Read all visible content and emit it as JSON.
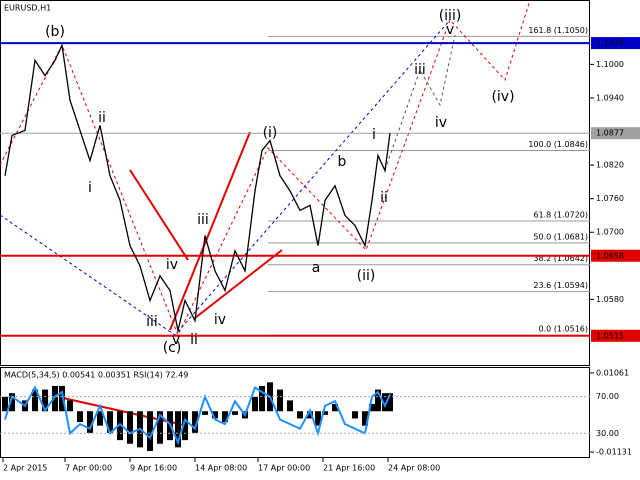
{
  "chart_data": [
    {
      "type": "line",
      "title": "EURUSD,H1",
      "color": "#000000",
      "x": [
        5,
        12,
        25,
        35,
        45,
        55,
        62,
        70,
        80,
        90,
        100,
        110,
        120,
        130,
        140,
        150,
        160,
        170,
        178,
        185,
        195,
        205,
        215,
        225,
        235,
        245,
        255,
        262,
        270,
        280,
        290,
        300,
        310,
        318,
        325,
        335,
        345,
        355,
        365,
        372,
        378,
        385,
        390
      ],
      "values": [
        1.0801,
        1.0873,
        1.0882,
        1.1007,
        1.098,
        1.1007,
        1.1034,
        1.0936,
        1.0882,
        1.0828,
        1.0891,
        1.0801,
        1.0757,
        1.0676,
        1.064,
        1.0578,
        1.0622,
        1.0596,
        1.0524,
        1.0578,
        1.0542,
        1.0694,
        1.0631,
        1.0596,
        1.0667,
        1.0631,
        1.0774,
        1.0846,
        1.0864,
        1.0801,
        1.0774,
        1.0739,
        1.0748,
        1.0676,
        1.0757,
        1.0783,
        1.073,
        1.0712,
        1.0676,
        1.0757,
        1.0837,
        1.081,
        1.0877
      ],
      "xlim": [
        0,
        590
      ],
      "xticks": [
        {
          "value": 3,
          "label": "2 Apr 2015"
        },
        {
          "value": 65,
          "label": "7 Apr 00:00"
        },
        {
          "value": 130,
          "label": "9 Apr 16:00"
        },
        {
          "value": 195,
          "label": "14 Apr 08:00"
        },
        {
          "value": 258,
          "label": "17 Apr 00:00"
        },
        {
          "value": 323,
          "label": "21 Apr 16:00"
        },
        {
          "value": 388,
          "label": "24 Apr 08:00"
        }
      ],
      "ylim": [
        1.0461,
        1.1115
      ],
      "yticks": [
        {
          "value": 1.1,
          "label": "1.1000"
        },
        {
          "value": 1.094,
          "label": "1.0940"
        },
        {
          "value": 1.082,
          "label": "1.0820"
        },
        {
          "value": 1.076,
          "label": "1.0760"
        },
        {
          "value": 1.07,
          "label": "1.0700"
        },
        {
          "value": 1.058,
          "label": "1.0580"
        }
      ],
      "levels": [
        {
          "value": 1.1038,
          "color": "#0000cd"
        },
        {
          "value": 1.0877,
          "color": "#a0a0a0"
        },
        {
          "value": 1.0658,
          "color": "#e00000"
        },
        {
          "value": 1.0515,
          "color": "#e00000"
        }
      ],
      "fib": [
        {
          "value": 1.105,
          "label": "161.8 (1.1050)"
        },
        {
          "value": 1.0846,
          "label": "100.0 (1.0846)"
        },
        {
          "value": 1.072,
          "label": "61.8 (1.0720)"
        },
        {
          "value": 1.0681,
          "label": "50.0 (1.0681)"
        },
        {
          "value": 1.0642,
          "label": "38.2 (1.0642)"
        },
        {
          "value": 1.0594,
          "label": "23.6 (1.0594)"
        },
        {
          "value": 1.0516,
          "label": "0.0 (1.0516)"
        }
      ],
      "annotations": [
        "(b)",
        "(c)",
        "(i)",
        "(ii)",
        "(iii)",
        "(iv)",
        "i",
        "ii",
        "iii",
        "iv",
        "iii",
        "v",
        "ii",
        "iv",
        "a",
        "b",
        "i",
        "ii",
        "iii",
        "iv",
        "v"
      ]
    },
    {
      "type": "indicator",
      "title": "MACD(5,34,5) 0.00541 0.00351 RSI(14) 72.49",
      "x": [
        5,
        12,
        25,
        35,
        45,
        55,
        62,
        70,
        80,
        90,
        100,
        110,
        120,
        130,
        140,
        150,
        160,
        170,
        178,
        185,
        195,
        205,
        215,
        225,
        235,
        245,
        255,
        262,
        270,
        280,
        290,
        300,
        310,
        318,
        325,
        335,
        345,
        355,
        365,
        372,
        378,
        385,
        390
      ],
      "ylim": [
        3,
        102.4
      ],
      "yticks": [
        {
          "value": 70,
          "label": "70.00"
        },
        {
          "value": 30,
          "label": "30.00"
        }
      ],
      "y2lim": [
        -0.01295,
        0.01225
      ],
      "y2ticks": [
        0.01061,
        -0.01131
      ],
      "series": [
        {
          "type": "bar",
          "axis": "y2",
          "color": "#000000",
          "values": [
            0.004,
            0.005,
            0.003,
            0.006,
            0.006,
            0.007,
            0.007,
            0.003,
            -0.003,
            -0.006,
            -0.004,
            -0.006,
            -0.008,
            -0.009,
            -0.01,
            -0.011,
            -0.009,
            -0.008,
            -0.01,
            -0.008,
            -0.006,
            -0.001,
            -0.002,
            -0.003,
            -0.001,
            -0.002,
            0.004,
            0.007,
            0.008,
            0.006,
            0.003,
            -0.002,
            -0.002,
            -0.004,
            -0.001,
            0.002,
            0,
            -0.002,
            -0.004,
            0.002,
            0.006,
            0.005,
            0.005
          ]
        },
        {
          "type": "line",
          "color": "#1e90ff",
          "values": [
            45,
            70,
            60,
            80,
            55,
            70,
            75,
            30,
            40,
            35,
            60,
            30,
            40,
            30,
            35,
            25,
            50,
            40,
            20,
            45,
            35,
            70,
            45,
            40,
            65,
            50,
            80,
            75,
            70,
            45,
            40,
            35,
            55,
            30,
            60,
            65,
            40,
            35,
            30,
            70,
            75,
            60,
            72.49
          ]
        }
      ]
    }
  ]
}
